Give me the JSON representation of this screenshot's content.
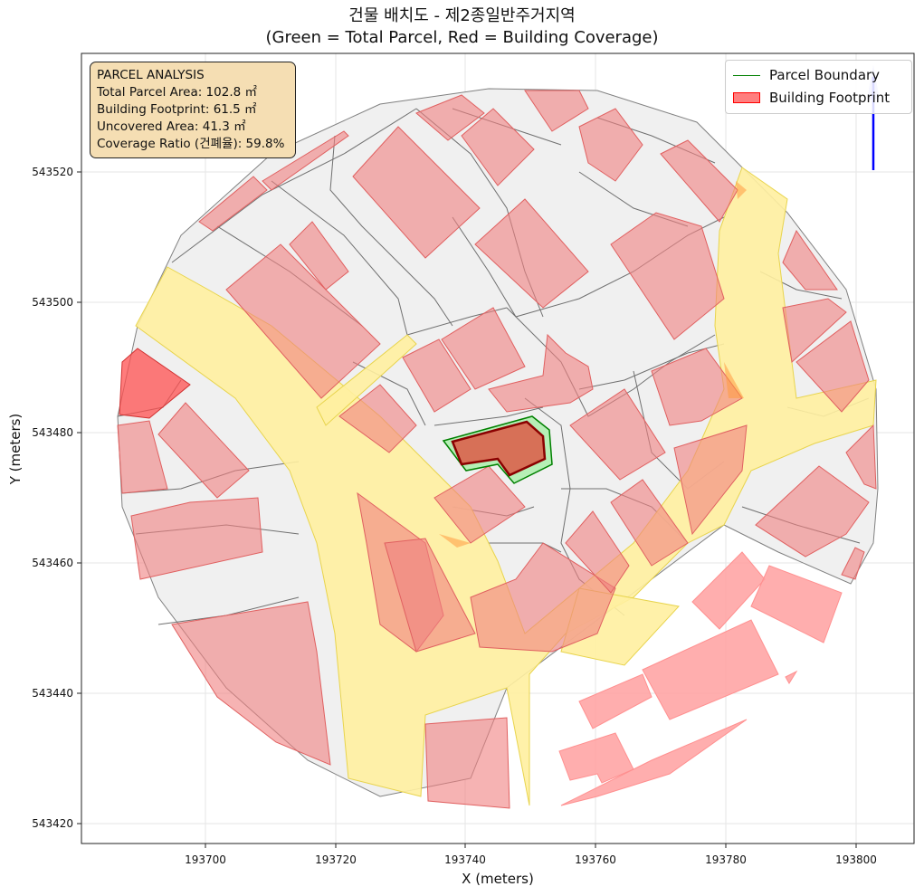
{
  "title": {
    "line1": "건물 배치도 - 제2종일반주거지역",
    "line2": "(Green = Total Parcel, Red = Building Coverage)"
  },
  "axes": {
    "xlabel": "X (meters)",
    "ylabel": "Y (meters)",
    "x_ticks": [
      "193700",
      "193720",
      "193740",
      "193760",
      "193780",
      "193800"
    ],
    "y_ticks": [
      "543420",
      "543440",
      "543460",
      "543480",
      "543500",
      "543520"
    ]
  },
  "info_box": {
    "heading": "PARCEL ANALYSIS",
    "total_area": "Total Parcel Area: 102.8 ㎡",
    "footprint": "Building Footprint: 61.5 ㎡",
    "uncovered": "Uncovered Area: 41.3 ㎡",
    "coverage": "Coverage Ratio (건폐율): 59.8%"
  },
  "legend": {
    "parcel_boundary": "Parcel Boundary",
    "building_footprint": "Building Footprint"
  },
  "colors": {
    "parcel_fill": "#f0f0f0",
    "parcel_edge": "#808080",
    "building_fill": "#f08080",
    "road_fill": "#fff0a0",
    "target_parcel": "#90ee90",
    "target_building": "#8b0000",
    "north_arrow": "#0000ff",
    "info_bg": "#f5deb3"
  }
}
